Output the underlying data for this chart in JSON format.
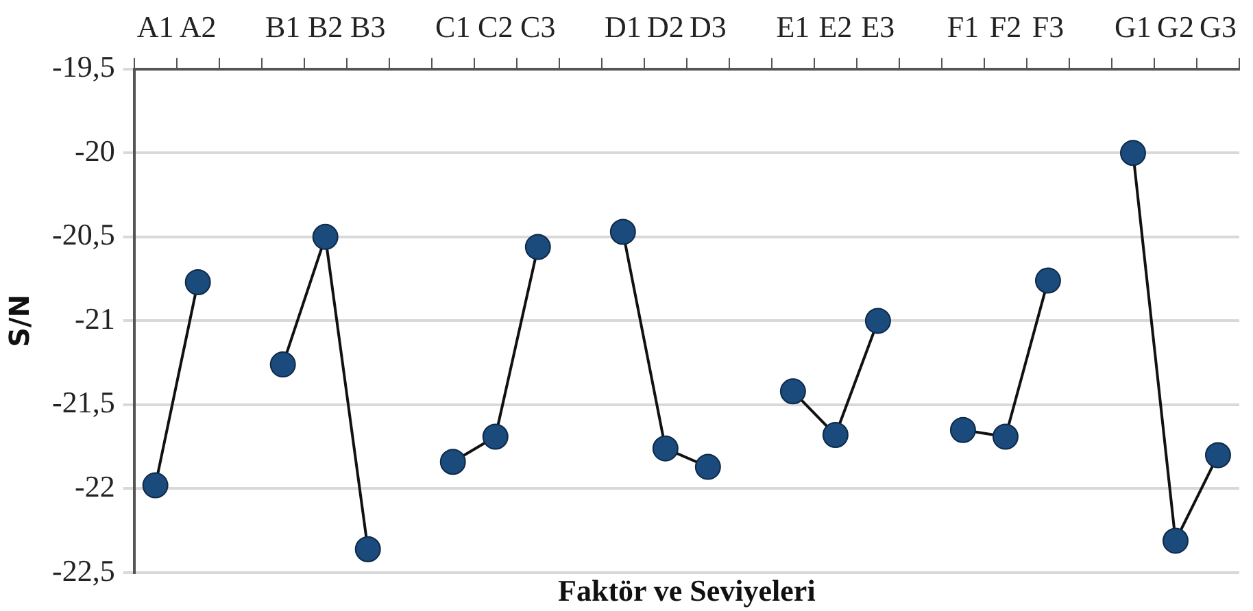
{
  "chart_data": {
    "type": "line",
    "xlabel": "Faktör ve Seviyeleri",
    "ylabel": "S/N",
    "categories": [
      "A1",
      "A2",
      null,
      "B1",
      "B2",
      "B3",
      null,
      "C1",
      "C2",
      "C3",
      null,
      "D1",
      "D2",
      "D3",
      null,
      "E1",
      "E2",
      "E3",
      null,
      "F1",
      "F2",
      "F3",
      null,
      "G1",
      "G2",
      "G3"
    ],
    "series": [
      {
        "color": "#1b4a7c",
        "values": [
          -21.98,
          -20.77,
          null,
          -21.26,
          -20.5,
          -22.36,
          null,
          -21.84,
          -21.69,
          -20.56,
          null,
          -20.47,
          -21.76,
          -21.87,
          null,
          -21.42,
          -21.68,
          -21.0,
          null,
          -21.65,
          -21.69,
          -20.76,
          null,
          -20.0,
          -22.31,
          -21.8
        ]
      }
    ],
    "ylim": [
      -22.5,
      -19.5
    ],
    "yticks": [
      {
        "value": -22.5,
        "label": "-22,5"
      },
      {
        "value": -22,
        "label": "-22"
      },
      {
        "value": -21.5,
        "label": "-21,5"
      },
      {
        "value": -21,
        "label": "-21"
      },
      {
        "value": -20.5,
        "label": "-20,5"
      },
      {
        "value": -20,
        "label": "-20"
      },
      {
        "value": -19.5,
        "label": "-19,5"
      }
    ],
    "grid": "y",
    "legend": false,
    "marker": "circle",
    "line_style": "solid"
  }
}
